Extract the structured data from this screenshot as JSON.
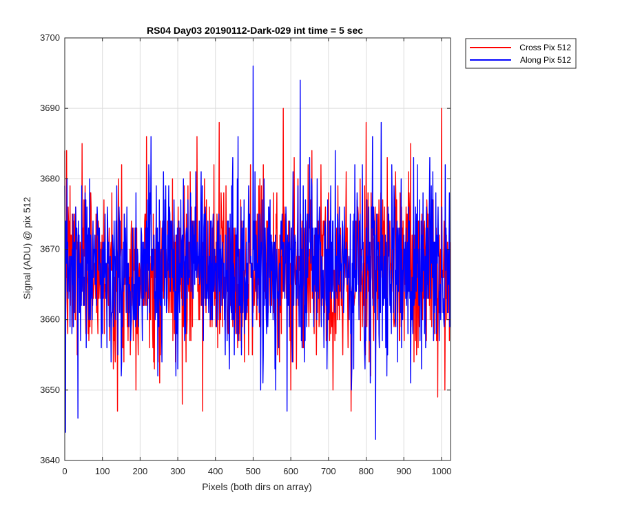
{
  "chart_data": {
    "type": "line",
    "title": "RS04 Day03 20190112-Dark-029 int time = 5 sec",
    "xlabel": "Pixels (both dirs on array)",
    "ylabel": "Signal (ADU) @ pix 512",
    "xlim": [
      0,
      1024
    ],
    "ylim": [
      3640,
      3700
    ],
    "xticks": [
      0,
      100,
      200,
      300,
      400,
      500,
      600,
      700,
      800,
      900,
      1000
    ],
    "yticks": [
      3640,
      3650,
      3660,
      3670,
      3680,
      3690,
      3700
    ],
    "grid": true,
    "legend_position": "outside-top-right",
    "series": [
      {
        "name": "Cross Pix 512",
        "color": "#ff0000",
        "noise": {
          "n": 1024,
          "mean": 3667,
          "std": 6,
          "seed": 7
        },
        "notable_points": [
          [
            5,
            3684
          ],
          [
            140,
            3647
          ],
          [
            312,
            3648
          ],
          [
            366,
            3647
          ],
          [
            410,
            3688
          ],
          [
            580,
            3690
          ],
          [
            600,
            3650
          ],
          [
            760,
            3647
          ],
          [
            800,
            3688
          ],
          [
            990,
            3649
          ],
          [
            1000,
            3690
          ]
        ]
      },
      {
        "name": "Along Pix 512",
        "color": "#0000ff",
        "noise": {
          "n": 1024,
          "mean": 3667,
          "std": 6,
          "seed": 23
        },
        "notable_points": [
          [
            2,
            3644
          ],
          [
            35,
            3646
          ],
          [
            500,
            3696
          ],
          [
            520,
            3650
          ],
          [
            590,
            3647
          ],
          [
            625,
            3694
          ],
          [
            825,
            3643
          ],
          [
            840,
            3688
          ],
          [
            1010,
            3682
          ]
        ]
      }
    ]
  }
}
